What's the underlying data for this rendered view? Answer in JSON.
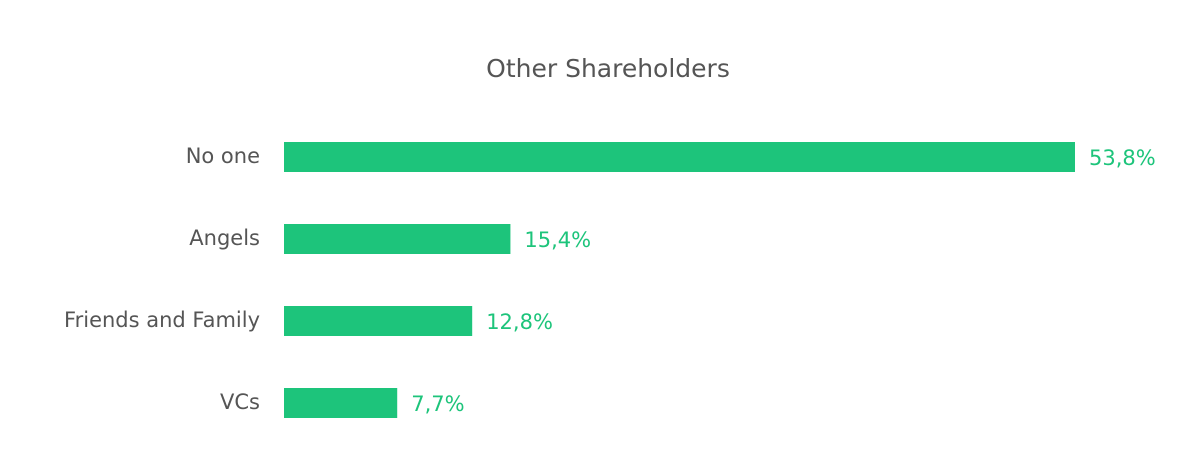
{
  "chart_data": {
    "type": "bar",
    "orientation": "horizontal",
    "title": "Other Shareholders",
    "categories": [
      "No one",
      "Angels",
      "Friends and Family",
      "VCs"
    ],
    "values": [
      53.8,
      15.4,
      12.8,
      7.7
    ],
    "value_labels": [
      "53,8%",
      "15,4%",
      "12,8%",
      "7,7%"
    ],
    "color": "#1dc47b"
  }
}
